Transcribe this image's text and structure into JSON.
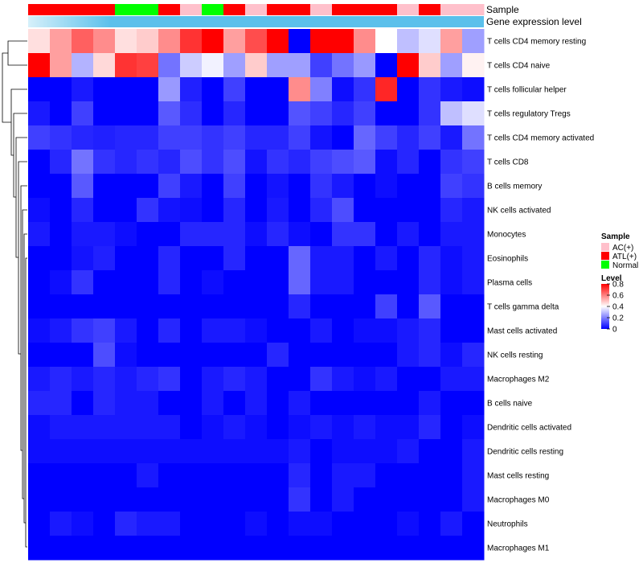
{
  "chart_data": {
    "type": "heatmap",
    "annotation_tracks": {
      "sample_label": "Sample",
      "expression_label": "Gene expression level"
    },
    "sample_groups": [
      "ATL(+)",
      "ATL(+)",
      "ATL(+)",
      "ATL(+)",
      "Normal",
      "Normal",
      "ATL(+)",
      "AC(+)",
      "Normal",
      "ATL(+)",
      "AC(+)",
      "ATL(+)",
      "ATL(+)",
      "AC(+)",
      "ATL(+)",
      "ATL(+)",
      "ATL(+)",
      "AC(+)",
      "ATL(+)",
      "AC(+)",
      "AC(+)"
    ],
    "rows": [
      "T cells CD4 memory resting",
      "T cells CD4 naive",
      "T cells follicular helper",
      "T cells regulatory  Tregs",
      "T cells CD4 memory activated",
      "T cells CD8",
      "B cells memory",
      "NK cells activated",
      "Monocytes",
      "Eosinophils",
      "Plasma cells",
      "T cells gamma delta",
      "Mast cells activated",
      "NK cells resting",
      "Macrophages M2",
      "B cells naive",
      "Dendritic cells activated",
      "Dendritic cells resting",
      "Mast cells resting",
      "Macrophages M0",
      "Neutrophils",
      "Macrophages M1"
    ],
    "values": [
      [
        0.45,
        0.55,
        0.65,
        0.58,
        0.45,
        0.48,
        0.58,
        0.72,
        0.8,
        0.55,
        0.68,
        0.8,
        0.0,
        0.8,
        0.8,
        0.58,
        0.4,
        0.3,
        0.35,
        0.55,
        0.25
      ],
      [
        0.8,
        0.55,
        0.28,
        0.46,
        0.72,
        0.7,
        0.18,
        0.32,
        0.38,
        0.25,
        0.48,
        0.25,
        0.25,
        0.1,
        0.18,
        0.24,
        0.0,
        0.8,
        0.48,
        0.25,
        0.42
      ],
      [
        0.0,
        0.0,
        0.04,
        0.0,
        0.0,
        0.0,
        0.24,
        0.05,
        0.0,
        0.1,
        0.0,
        0.0,
        0.58,
        0.2,
        0.02,
        0.08,
        0.74,
        0.0,
        0.08,
        0.04,
        0.02
      ],
      [
        0.04,
        0.0,
        0.1,
        0.0,
        0.0,
        0.0,
        0.14,
        0.07,
        0.0,
        0.06,
        0.0,
        0.0,
        0.13,
        0.1,
        0.06,
        0.1,
        0.0,
        0.0,
        0.08,
        0.3,
        0.35
      ],
      [
        0.1,
        0.08,
        0.06,
        0.05,
        0.06,
        0.06,
        0.1,
        0.1,
        0.08,
        0.1,
        0.06,
        0.06,
        0.1,
        0.03,
        0.0,
        0.16,
        0.1,
        0.06,
        0.1,
        0.04,
        0.18
      ],
      [
        0.0,
        0.06,
        0.18,
        0.08,
        0.06,
        0.08,
        0.06,
        0.12,
        0.08,
        0.12,
        0.03,
        0.08,
        0.06,
        0.1,
        0.12,
        0.14,
        0.02,
        0.06,
        0.0,
        0.08,
        0.1
      ],
      [
        0.0,
        0.0,
        0.14,
        0.0,
        0.0,
        0.0,
        0.1,
        0.04,
        0.0,
        0.1,
        0.0,
        0.03,
        0.0,
        0.08,
        0.04,
        0.0,
        0.02,
        0.0,
        0.0,
        0.1,
        0.08
      ],
      [
        0.02,
        0.0,
        0.06,
        0.0,
        0.0,
        0.08,
        0.03,
        0.02,
        0.0,
        0.06,
        0.0,
        0.04,
        0.0,
        0.06,
        0.12,
        0.0,
        0.0,
        0.0,
        0.0,
        0.06,
        0.04
      ],
      [
        0.04,
        0.0,
        0.04,
        0.04,
        0.02,
        0.0,
        0.0,
        0.06,
        0.06,
        0.06,
        0.02,
        0.06,
        0.02,
        0.0,
        0.08,
        0.08,
        0.0,
        0.04,
        0.0,
        0.04,
        0.04
      ],
      [
        0.0,
        0.0,
        0.03,
        0.05,
        0.0,
        0.0,
        0.06,
        0.0,
        0.0,
        0.06,
        0.0,
        0.0,
        0.16,
        0.04,
        0.04,
        0.0,
        0.04,
        0.0,
        0.06,
        0.02,
        0.04
      ],
      [
        0.0,
        0.02,
        0.08,
        0.0,
        0.0,
        0.0,
        0.06,
        0.0,
        0.02,
        0.0,
        0.0,
        0.0,
        0.16,
        0.04,
        0.04,
        0.0,
        0.0,
        0.0,
        0.06,
        0.02,
        0.04
      ],
      [
        0.0,
        0.0,
        0.0,
        0.0,
        0.0,
        0.0,
        0.0,
        0.0,
        0.0,
        0.0,
        0.0,
        0.0,
        0.06,
        0.0,
        0.0,
        0.0,
        0.1,
        0.0,
        0.14,
        0.0,
        0.0
      ],
      [
        0.02,
        0.04,
        0.08,
        0.1,
        0.04,
        0.0,
        0.06,
        0.0,
        0.04,
        0.04,
        0.02,
        0.0,
        0.0,
        0.04,
        0.0,
        0.02,
        0.02,
        0.04,
        0.06,
        0.0,
        0.0
      ],
      [
        0.0,
        0.0,
        0.0,
        0.12,
        0.02,
        0.0,
        0.0,
        0.0,
        0.0,
        0.0,
        0.0,
        0.06,
        0.0,
        0.0,
        0.0,
        0.0,
        0.0,
        0.04,
        0.06,
        0.02,
        0.06
      ],
      [
        0.04,
        0.06,
        0.04,
        0.06,
        0.04,
        0.06,
        0.08,
        0.0,
        0.04,
        0.06,
        0.04,
        0.0,
        0.0,
        0.08,
        0.04,
        0.02,
        0.04,
        0.0,
        0.0,
        0.04,
        0.04
      ],
      [
        0.06,
        0.06,
        0.0,
        0.06,
        0.04,
        0.04,
        0.0,
        0.0,
        0.04,
        0.0,
        0.04,
        0.0,
        0.04,
        0.0,
        0.0,
        0.0,
        0.0,
        0.0,
        0.04,
        0.0,
        0.0
      ],
      [
        0.02,
        0.04,
        0.04,
        0.04,
        0.04,
        0.04,
        0.04,
        0.0,
        0.02,
        0.04,
        0.02,
        0.0,
        0.02,
        0.04,
        0.02,
        0.04,
        0.02,
        0.02,
        0.06,
        0.0,
        0.02
      ],
      [
        0.02,
        0.02,
        0.02,
        0.02,
        0.02,
        0.02,
        0.02,
        0.02,
        0.02,
        0.02,
        0.02,
        0.02,
        0.04,
        0.0,
        0.02,
        0.02,
        0.02,
        0.04,
        0.0,
        0.0,
        0.04
      ],
      [
        0.0,
        0.0,
        0.0,
        0.0,
        0.0,
        0.04,
        0.0,
        0.0,
        0.0,
        0.0,
        0.0,
        0.0,
        0.06,
        0.0,
        0.04,
        0.04,
        0.0,
        0.0,
        0.0,
        0.0,
        0.04
      ],
      [
        0.0,
        0.0,
        0.0,
        0.0,
        0.0,
        0.0,
        0.0,
        0.0,
        0.0,
        0.0,
        0.0,
        0.0,
        0.08,
        0.0,
        0.04,
        0.0,
        0.0,
        0.0,
        0.0,
        0.0,
        0.04
      ],
      [
        0.0,
        0.04,
        0.02,
        0.0,
        0.06,
        0.04,
        0.04,
        0.0,
        0.0,
        0.0,
        0.02,
        0.0,
        0.02,
        0.02,
        0.0,
        0.0,
        0.0,
        0.02,
        0.0,
        0.04,
        0.0
      ],
      [
        0.0,
        0.0,
        0.0,
        0.0,
        0.0,
        0.0,
        0.0,
        0.0,
        0.0,
        0.0,
        0.0,
        0.0,
        0.0,
        0.0,
        0.0,
        0.0,
        0.0,
        0.0,
        0.0,
        0.0,
        0.0
      ]
    ],
    "color_scale": {
      "min": 0,
      "max": 0.8,
      "colors": [
        "#0000ff",
        "#ffffff",
        "#ff0000"
      ]
    },
    "legend": {
      "sample_title": "Sample",
      "sample_entries": [
        {
          "label": "AC(+)",
          "color": "#ffc0cb"
        },
        {
          "label": "ATL(+)",
          "color": "#ff0000"
        },
        {
          "label": "Normal",
          "color": "#00ff00"
        }
      ],
      "level_title": "Level",
      "level_ticks": [
        "0.8",
        "0.6",
        "0.4",
        "0.2",
        "0"
      ],
      "level_tick_values": [
        0.8,
        0.6,
        0.4,
        0.2,
        0
      ]
    },
    "expression_bar_colors": [
      "#5bc0eb",
      "#d6f0fa"
    ]
  }
}
